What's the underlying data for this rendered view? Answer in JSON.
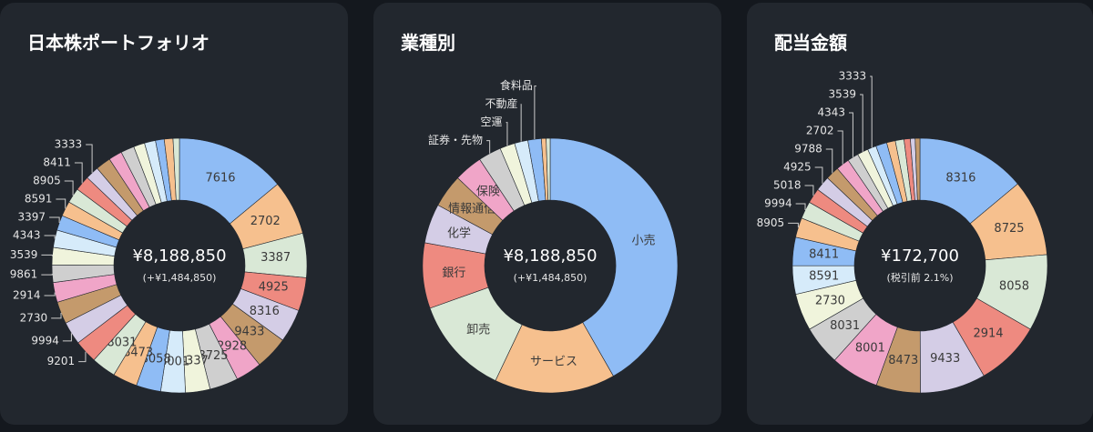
{
  "chart_data": [
    {
      "type": "pie",
      "donut": true,
      "title": "日本株ポートフォリオ",
      "center_label": "¥8,188,850",
      "center_sublabel": "(+¥1,484,850)",
      "categories": [
        "7616",
        "2702",
        "3387",
        "4925",
        "8316",
        "9433",
        "2928",
        "8725",
        "4337",
        "8001",
        "8058",
        "8473",
        "8031",
        "9201",
        "9994",
        "2730",
        "2914",
        "9861",
        "3539",
        "4343",
        "3397",
        "8591",
        "8905",
        "8411",
        "3333",
        null,
        null,
        null,
        null,
        null,
        null,
        null,
        null
      ],
      "values": [
        13.9,
        6.9,
        5.6,
        4.2,
        4.2,
        4.2,
        3.3,
        3.6,
        3.1,
        3.1,
        3.1,
        3.1,
        3.1,
        2.9,
        2.9,
        2.8,
        2.5,
        2.2,
        2.2,
        2.2,
        1.9,
        1.9,
        1.9,
        1.9,
        1.7,
        1.9,
        1.7,
        1.7,
        1.4,
        1.4,
        1.1,
        1.1,
        0.8
      ],
      "colors": [
        "#8fbcf5",
        "#f6c08e",
        "#d9e8d6",
        "#ee8a80",
        "#d4cde6",
        "#c49a6c",
        "#f0a5c8",
        "#cfcfcf",
        "#f0f4dc",
        "#d6ebfa"
      ]
    },
    {
      "type": "pie",
      "donut": true,
      "title": "業種別",
      "center_label": "¥8,188,850",
      "center_sublabel": "(+¥1,484,850)",
      "categories": [
        "小売",
        "サービス",
        "卸売",
        "銀行",
        "化学",
        "情報通信",
        "保険",
        "証券・先物",
        "空運",
        "不動産",
        "食料品",
        null,
        null
      ],
      "values": [
        41.7,
        15.3,
        12.5,
        8.3,
        5.0,
        4.2,
        3.6,
        2.9,
        1.9,
        1.7,
        1.7,
        0.6,
        0.5
      ],
      "colors": [
        "#8fbcf5",
        "#f6c08e",
        "#d9e8d6",
        "#ee8a80",
        "#d4cde6",
        "#c49a6c",
        "#f0a5c8",
        "#cfcfcf",
        "#f0f4dc",
        "#d6ebfa"
      ]
    },
    {
      "type": "pie",
      "donut": true,
      "title": "配当金額",
      "center_label": "¥172,700",
      "center_sublabel": "(税引前 2.1%)",
      "categories": [
        "8316",
        "8725",
        "8058",
        "2914",
        "9433",
        "8473",
        "8001",
        "8031",
        "2730",
        "8591",
        "8411",
        "8905",
        "9994",
        "5018",
        "4925",
        "9788",
        "2702",
        "4343",
        "3539",
        "3333",
        null,
        null,
        null,
        null,
        null,
        null
      ],
      "values": [
        13.9,
        9.7,
        9.7,
        8.3,
        8.3,
        5.6,
        6.1,
        5.0,
        4.7,
        3.6,
        3.6,
        2.5,
        2.2,
        1.9,
        1.9,
        1.7,
        1.7,
        1.4,
        1.4,
        1.1,
        1.4,
        1.1,
        1.1,
        0.8,
        0.6,
        0.6
      ],
      "colors": [
        "#8fbcf5",
        "#f6c08e",
        "#d9e8d6",
        "#ee8a80",
        "#d4cde6",
        "#c49a6c",
        "#f0a5c8",
        "#cfcfcf",
        "#f0f4dc",
        "#d6ebfa"
      ]
    }
  ]
}
